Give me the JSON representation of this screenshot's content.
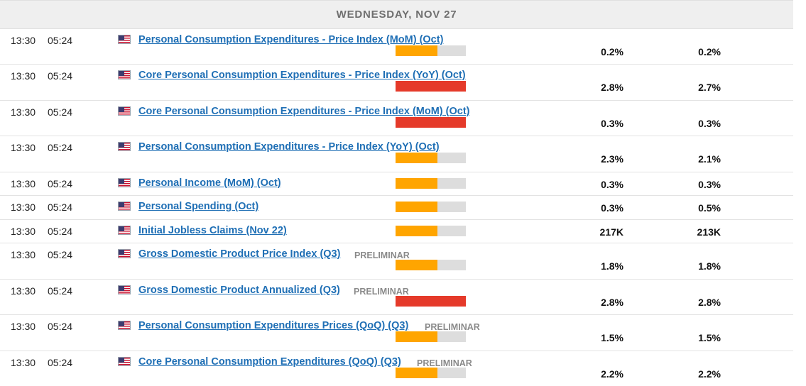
{
  "day_header": "WEDNESDAY, NOV 27",
  "colors": {
    "medium": "#ffa500",
    "high": "#e53a2a",
    "track": "#dddddd",
    "link": "#1f6fb5"
  },
  "events": [
    {
      "time1": "13:30",
      "time2": "05:24",
      "country_icon": "us-flag-icon",
      "title": "Personal Consumption Expenditures - Price Index (MoM) (Oct)",
      "tag": "",
      "impact": "medium",
      "impact_level": 0.6,
      "actual": "0.2%",
      "forecast": "0.2%"
    },
    {
      "time1": "13:30",
      "time2": "05:24",
      "country_icon": "us-flag-icon",
      "title": "Core Personal Consumption Expenditures - Price Index (YoY) (Oct)",
      "tag": "",
      "impact": "high",
      "impact_level": 1.0,
      "actual": "2.8%",
      "forecast": "2.7%"
    },
    {
      "time1": "13:30",
      "time2": "05:24",
      "country_icon": "us-flag-icon",
      "title": "Core Personal Consumption Expenditures - Price Index (MoM) (Oct)",
      "tag": "",
      "impact": "high",
      "impact_level": 1.0,
      "actual": "0.3%",
      "forecast": "0.3%"
    },
    {
      "time1": "13:30",
      "time2": "05:24",
      "country_icon": "us-flag-icon",
      "title": "Personal Consumption Expenditures - Price Index (YoY) (Oct)",
      "tag": "",
      "impact": "medium",
      "impact_level": 0.6,
      "actual": "2.3%",
      "forecast": "2.1%"
    },
    {
      "time1": "13:30",
      "time2": "05:24",
      "country_icon": "us-flag-icon",
      "title": "Personal Income (MoM) (Oct)",
      "tag": "",
      "impact": "medium",
      "impact_level": 0.6,
      "actual": "0.3%",
      "forecast": "0.3%"
    },
    {
      "time1": "13:30",
      "time2": "05:24",
      "country_icon": "us-flag-icon",
      "title": "Personal Spending (Oct)",
      "tag": "",
      "impact": "medium",
      "impact_level": 0.6,
      "actual": "0.3%",
      "forecast": "0.5%"
    },
    {
      "time1": "13:30",
      "time2": "05:24",
      "country_icon": "us-flag-icon",
      "title": "Initial Jobless Claims (Nov 22)",
      "tag": "",
      "impact": "medium",
      "impact_level": 0.6,
      "actual": "217K",
      "forecast": "213K"
    },
    {
      "time1": "13:30",
      "time2": "05:24",
      "country_icon": "us-flag-icon",
      "title": "Gross Domestic Product Price Index (Q3)",
      "tag": "PRELIMINAR",
      "impact": "medium",
      "impact_level": 0.6,
      "actual": "1.8%",
      "forecast": "1.8%"
    },
    {
      "time1": "13:30",
      "time2": "05:24",
      "country_icon": "us-flag-icon",
      "title": "Gross Domestic Product Annualized (Q3)",
      "tag": "PRELIMINAR",
      "impact": "high",
      "impact_level": 1.0,
      "actual": "2.8%",
      "forecast": "2.8%"
    },
    {
      "time1": "13:30",
      "time2": "05:24",
      "country_icon": "us-flag-icon",
      "title": "Personal Consumption Expenditures Prices (QoQ) (Q3)",
      "tag": "PRELIMINAR",
      "impact": "medium",
      "impact_level": 0.6,
      "actual": "1.5%",
      "forecast": "1.5%"
    },
    {
      "time1": "13:30",
      "time2": "05:24",
      "country_icon": "us-flag-icon",
      "title": "Core Personal Consumption Expenditures (QoQ) (Q3)",
      "tag": "PRELIMINAR",
      "impact": "medium",
      "impact_level": 0.6,
      "actual": "2.2%",
      "forecast": "2.2%"
    }
  ]
}
